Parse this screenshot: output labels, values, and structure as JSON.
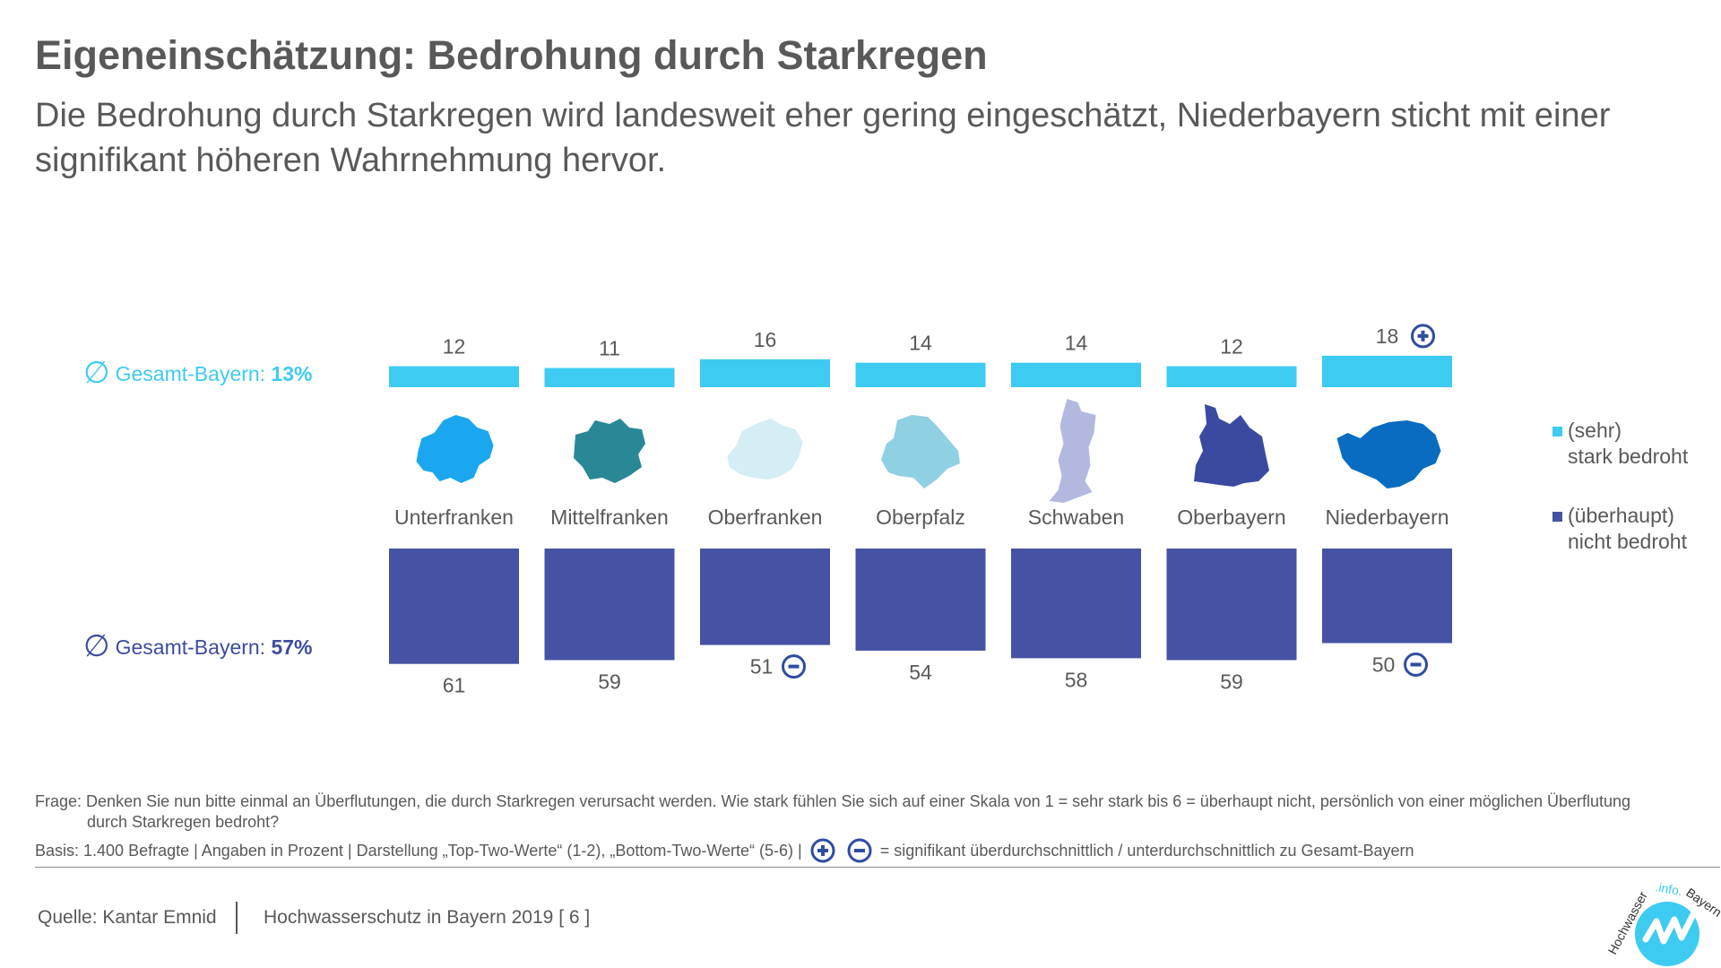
{
  "title": "Eigeneinschätzung: Bedrohung durch Starkregen",
  "subtitle": "Die Bedrohung durch Starkregen wird landesweit eher gering eingeschätzt, Niederbayern sticht mit einer signifikant höheren Wahrnehmung hervor.",
  "colors": {
    "high": "#3ecbf2",
    "low": "#4652a3",
    "sig_icon": "#2f4da0"
  },
  "averages": {
    "symbol": "∅",
    "high_label": "Gesamt-Bayern:",
    "high_value": "13%",
    "low_label": "Gesamt-Bayern:",
    "low_value": "57%"
  },
  "legend": {
    "high_line1": "(sehr)",
    "high_line2": "stark bedroht",
    "low_line1": "(überhaupt)",
    "low_line2": "nicht bedroht"
  },
  "chart_data": {
    "type": "bar",
    "categories": [
      "Unterfranken",
      "Mittelfranken",
      "Oberfranken",
      "Oberpfalz",
      "Schwaben",
      "Oberbayern",
      "Niederbayern"
    ],
    "series": [
      {
        "name": "(sehr) stark bedroht",
        "values": [
          12,
          11,
          16,
          14,
          14,
          12,
          18
        ],
        "significance": [
          "",
          "",
          "",
          "",
          "",
          "",
          "plus"
        ]
      },
      {
        "name": "(überhaupt) nicht bedroht",
        "values": [
          61,
          59,
          51,
          54,
          58,
          59,
          50
        ],
        "significance": [
          "",
          "",
          "minus",
          "",
          "",
          "",
          "minus"
        ]
      }
    ],
    "region_colors": [
      "#1ba6f0",
      "#2a8796",
      "#d5edf4",
      "#8fd0e3",
      "#b3b9de",
      "#3b4aa0",
      "#0a6cc0"
    ],
    "region_icons": [
      "unterfranken-map-icon",
      "mittelfranken-map-icon",
      "oberfranken-map-icon",
      "oberpfalz-map-icon",
      "schwaben-map-icon",
      "oberbayern-map-icon",
      "niederbayern-map-icon"
    ]
  },
  "footnote": {
    "question_prefix": "Frage:",
    "question_line1": "Denken Sie nun bitte einmal an Überflutungen, die durch Starkregen verursacht werden. Wie stark fühlen Sie sich auf einer Skala von 1 = sehr stark bis 6 = überhaupt nicht, persönlich von einer möglichen Überflutung",
    "question_line2": "durch Starkregen bedroht?",
    "basis": "Basis: 1.400 Befragte  | Angaben in Prozent  |  Darstellung „Top-Two-Werte“ (1-2), „Bottom-Two-Werte“ (5-6) |",
    "significance_text": "= signifikant überdurchschnittlich / unterdurchschnittlich zu Gesamt-Bayern"
  },
  "footer": {
    "source": "Quelle: Kantar Emnid",
    "report": "Hochwasserschutz in Bayern 2019",
    "page": "[ 6 ]"
  },
  "logo": {
    "text": "Hochwasser.info.Bayern"
  }
}
